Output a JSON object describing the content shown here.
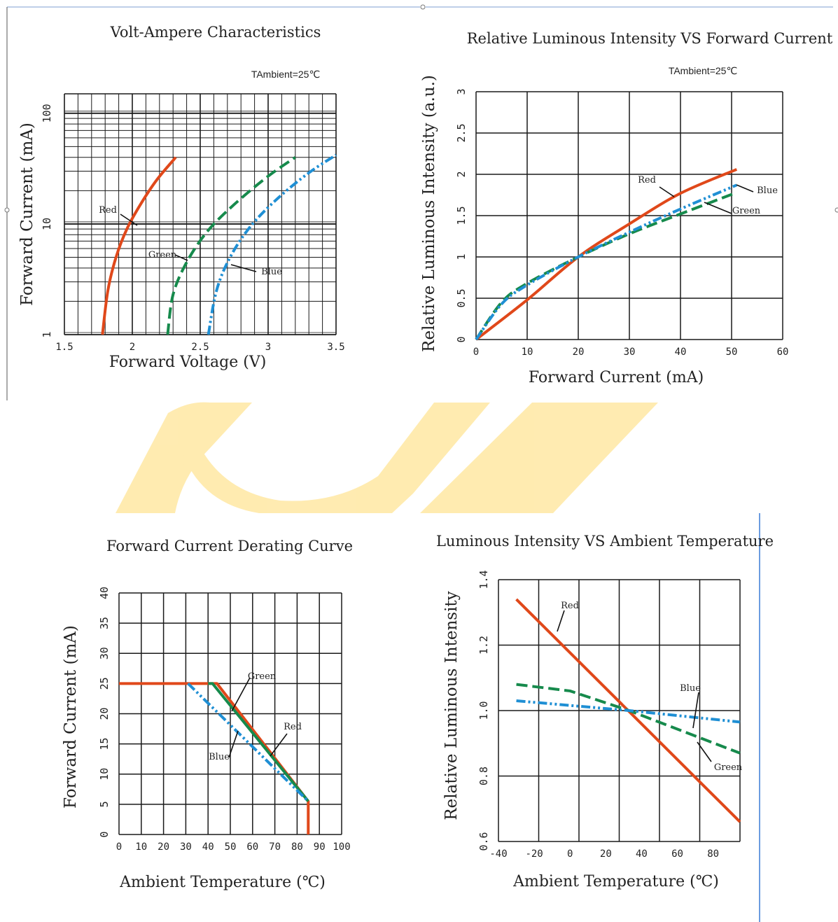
{
  "colors": {
    "red": "#e0481a",
    "green": "#168a4c",
    "blue": "#1f8fd4",
    "grid": "#1a1a1a",
    "watermark": "#ffe9a8",
    "divider": "#3a7bd5"
  },
  "chart_data": [
    {
      "id": "volt_ampere",
      "type": "line",
      "title": "Volt-Ampere Characteristics",
      "condition": "TAmbient=25℃",
      "xlabel": "Forward Voltage (V)",
      "ylabel": "Forward Current (mA)",
      "xscale": "linear",
      "yscale": "log",
      "xlim": [
        1.5,
        3.5
      ],
      "ylim": [
        1,
        150
      ],
      "xticks": [
        "1.5",
        "2",
        "2.5",
        "3",
        "3.5"
      ],
      "yticks": [
        "1",
        "10",
        "100"
      ],
      "grid": true,
      "series": [
        {
          "name": "Red",
          "style": "solid",
          "x": [
            1.78,
            1.82,
            1.88,
            1.96,
            2.06,
            2.18,
            2.32
          ],
          "y": [
            1,
            2.5,
            5,
            9,
            15,
            25,
            40
          ]
        },
        {
          "name": "Green",
          "style": "dashed",
          "x": [
            2.26,
            2.3,
            2.4,
            2.55,
            2.75,
            3.0,
            3.2
          ],
          "y": [
            1,
            2.3,
            4.5,
            8.5,
            15,
            27,
            40
          ]
        },
        {
          "name": "Blue",
          "style": "dashdot",
          "x": [
            2.56,
            2.62,
            2.72,
            2.87,
            3.07,
            3.3,
            3.5
          ],
          "y": [
            1,
            2.5,
            5,
            9.5,
            17,
            29,
            42
          ]
        }
      ],
      "annotations": [
        "Red",
        "Green",
        "Blue"
      ]
    },
    {
      "id": "luminous_vs_current",
      "type": "line",
      "title": "Relative Luminous Intensity VS Forward Current",
      "condition": "TAmbient=25℃",
      "xlabel": "Forward Current (mA)",
      "ylabel": "Relative Luminous Intensity (a.u.)",
      "xlim": [
        0,
        60
      ],
      "ylim": [
        0,
        3
      ],
      "xticks": [
        "0",
        "10",
        "20",
        "30",
        "40",
        "50",
        "60"
      ],
      "yticks": [
        "0",
        "0.5",
        "1",
        "1.5",
        "2",
        "2.5",
        "3"
      ],
      "grid": true,
      "series": [
        {
          "name": "Red",
          "style": "solid",
          "x": [
            0,
            10,
            20,
            30,
            40,
            51
          ],
          "y": [
            0,
            0.48,
            1.0,
            1.4,
            1.77,
            2.06
          ]
        },
        {
          "name": "Green",
          "style": "dashed",
          "x": [
            0,
            5,
            10,
            20,
            30,
            40,
            51
          ],
          "y": [
            0,
            0.45,
            0.68,
            1.0,
            1.28,
            1.52,
            1.78
          ]
        },
        {
          "name": "Blue",
          "style": "dashdot",
          "x": [
            0,
            5,
            10,
            20,
            30,
            40,
            51
          ],
          "y": [
            0,
            0.43,
            0.66,
            1.0,
            1.3,
            1.58,
            1.87
          ]
        }
      ],
      "annotations": [
        "Red",
        "Blue",
        "Green"
      ]
    },
    {
      "id": "derating",
      "type": "line",
      "title": "Forward Current Derating Curve",
      "xlabel": "Ambient Temperature (℃)",
      "ylabel": "Forward Current (mA)",
      "xlim": [
        0,
        100
      ],
      "ylim": [
        0,
        40
      ],
      "xticks": [
        "0",
        "10",
        "20",
        "30",
        "40",
        "50",
        "60",
        "70",
        "80",
        "90",
        "100"
      ],
      "yticks": [
        "0",
        "5",
        "10",
        "15",
        "20",
        "25",
        "30",
        "35",
        "40"
      ],
      "grid": true,
      "series": [
        {
          "name": "Red",
          "style": "solid",
          "x": [
            0,
            44,
            85,
            85
          ],
          "y": [
            25,
            25,
            5.5,
            0
          ]
        },
        {
          "name": "Green",
          "style": "solid",
          "x": [
            40,
            42,
            85
          ],
          "y": [
            25,
            25,
            5.5
          ]
        },
        {
          "name": "Blue",
          "style": "dashdot",
          "x": [
            31,
            85
          ],
          "y": [
            25,
            5.5
          ]
        }
      ],
      "annotations": [
        "Green",
        "Red",
        "Blue"
      ]
    },
    {
      "id": "luminous_vs_temp",
      "type": "line",
      "title": "Luminous Intensity VS Ambient Temperature",
      "xlabel": "Ambient Temperature (℃)",
      "ylabel": "Relative Luminous Intensity",
      "xlim": [
        -40,
        95
      ],
      "ylim": [
        0.6,
        1.4
      ],
      "xticks": [
        "-40",
        "-20",
        "0",
        "20",
        "40",
        "60",
        "80"
      ],
      "yticks": [
        "0.6",
        "0.8",
        "1.0",
        "1.2",
        "1.4"
      ],
      "grid": true,
      "series": [
        {
          "name": "Red",
          "style": "solid",
          "x": [
            -30,
            95
          ],
          "y": [
            1.34,
            0.66
          ]
        },
        {
          "name": "Green",
          "style": "dashed",
          "x": [
            -30,
            0,
            33,
            95
          ],
          "y": [
            1.08,
            1.06,
            1.0,
            0.87
          ]
        },
        {
          "name": "Blue",
          "style": "dashdot",
          "x": [
            -30,
            33,
            95
          ],
          "y": [
            1.03,
            1.0,
            0.965
          ]
        }
      ],
      "annotations": [
        "Red",
        "Blue",
        "Green"
      ]
    }
  ]
}
